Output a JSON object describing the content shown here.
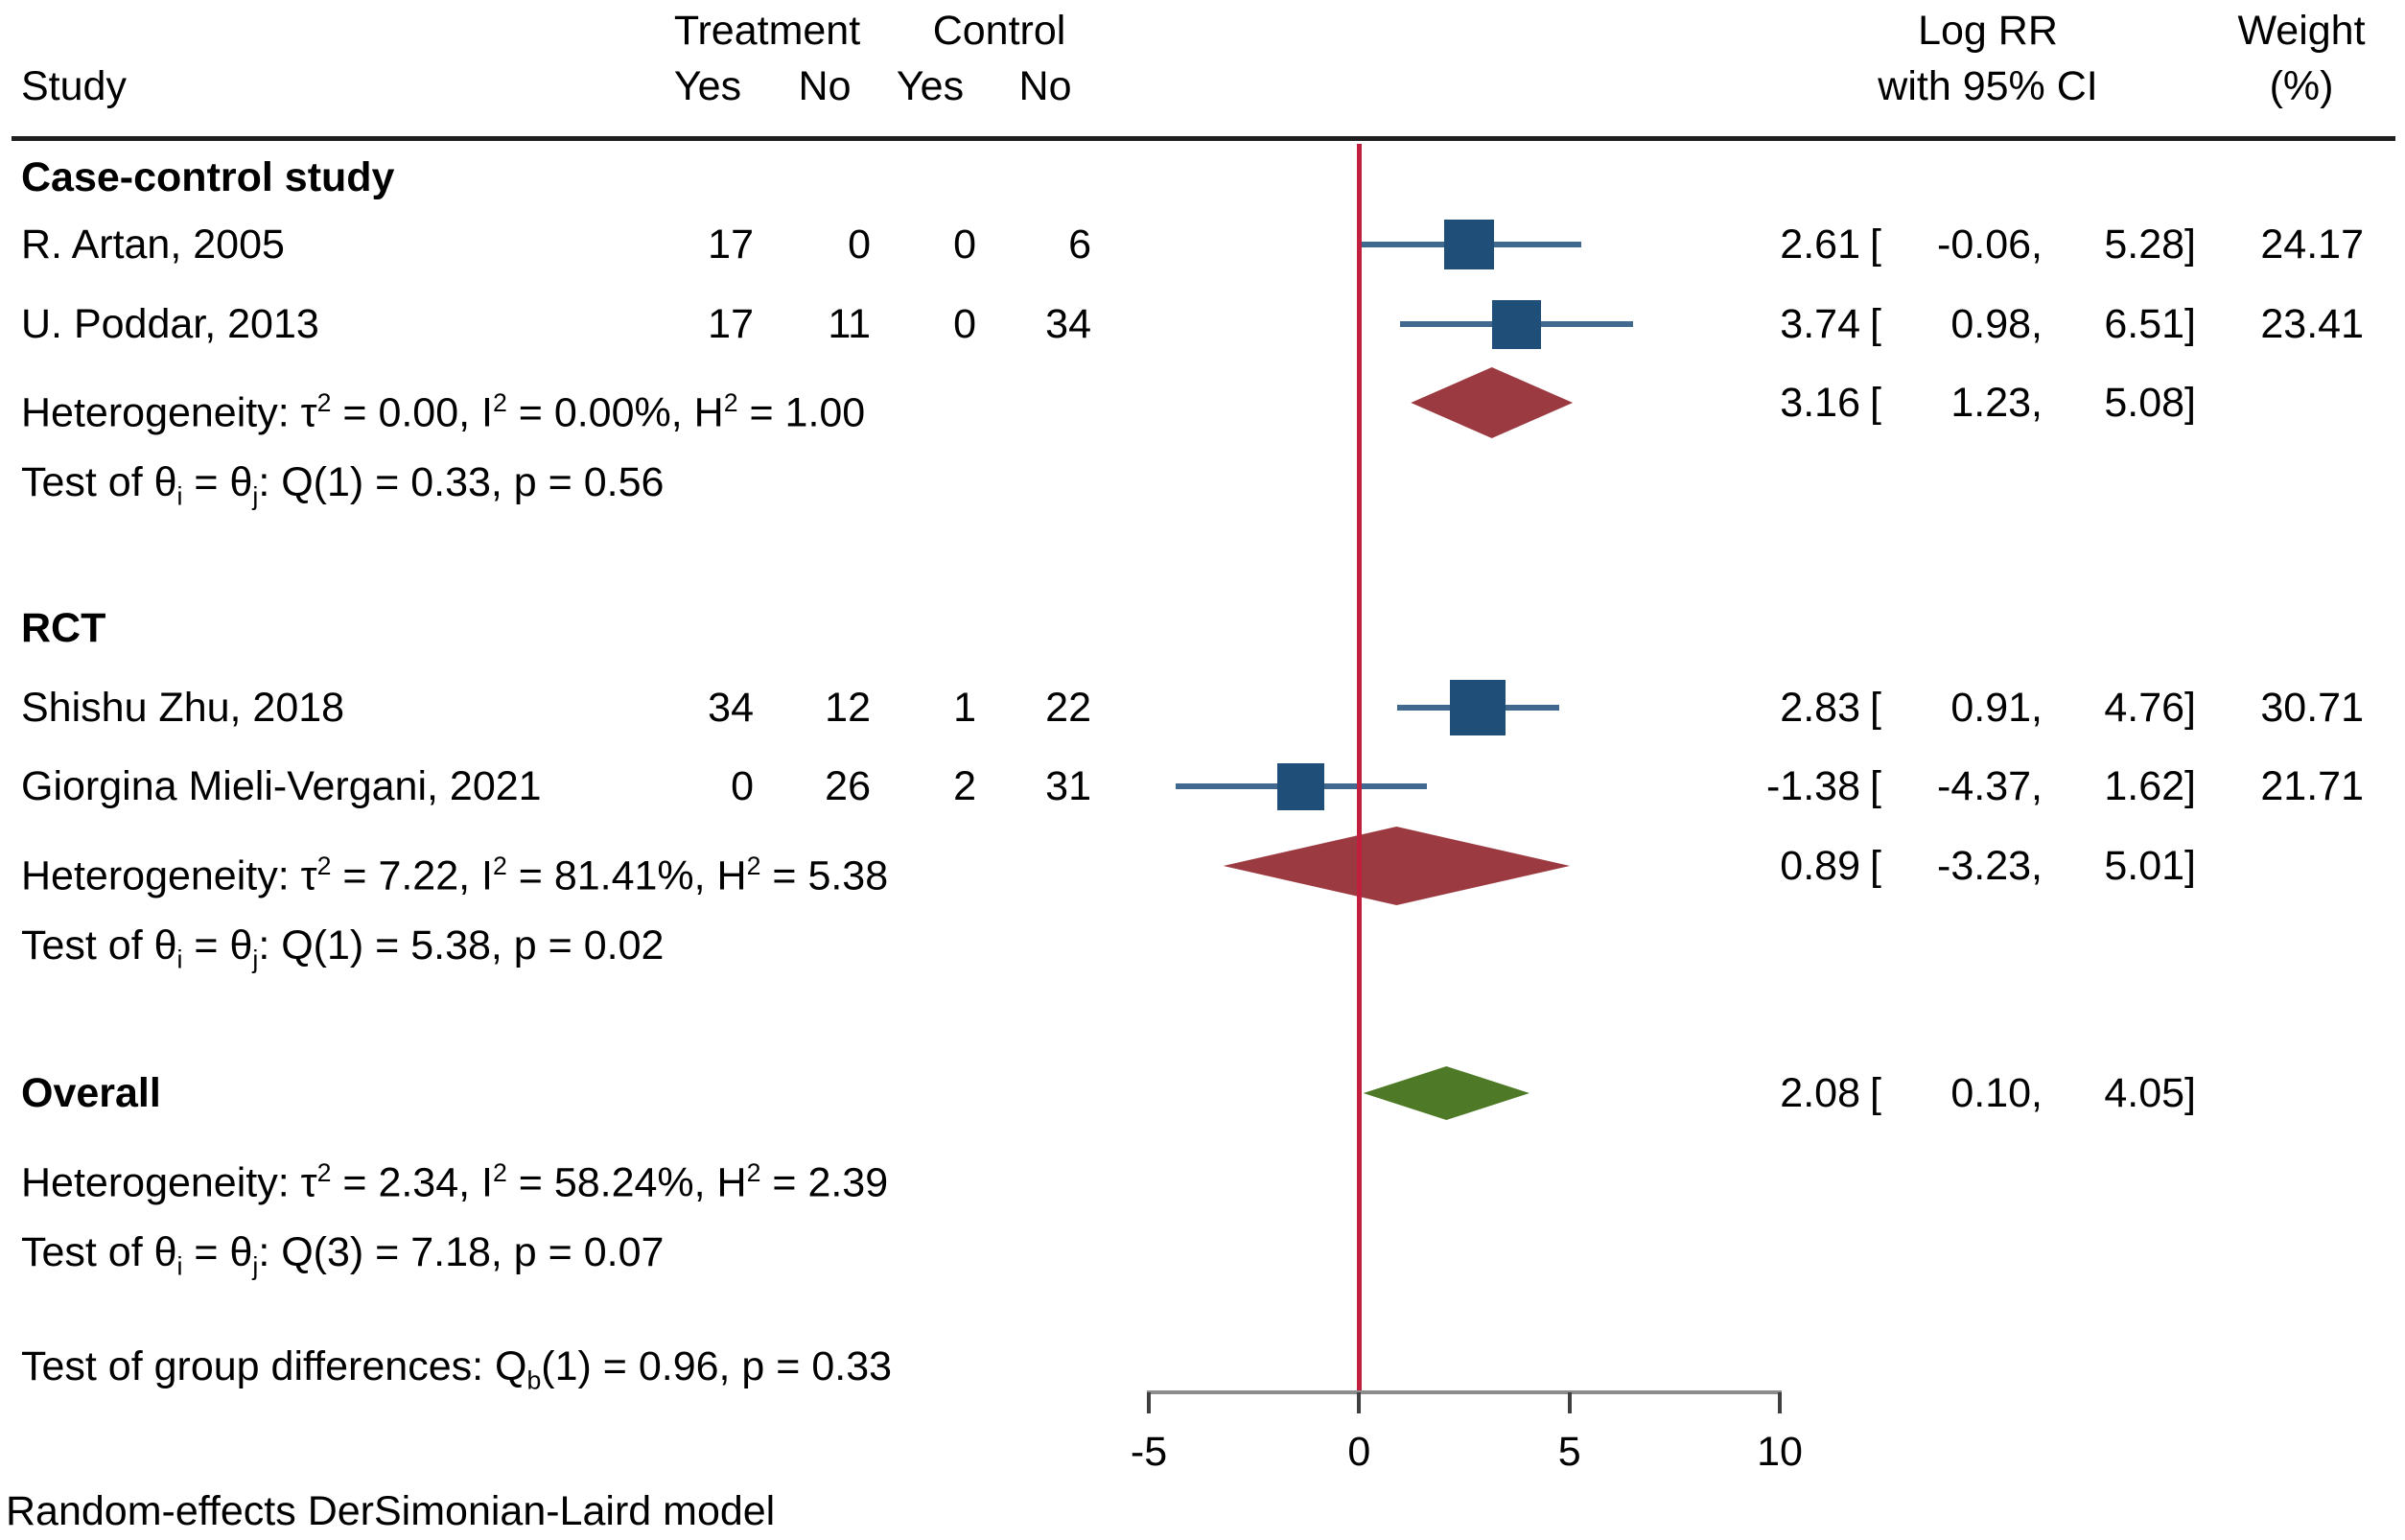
{
  "header": {
    "study": "Study",
    "treatment": "Treatment",
    "control": "Control",
    "treatment_yes": "Yes",
    "treatment_no": "No",
    "control_yes": "Yes",
    "control_no": "No",
    "effect_line1": "Log RR",
    "effect_line2": "with 95% CI",
    "weight_line1": "Weight",
    "weight_line2": "(%)"
  },
  "footer": "Random-effects DerSimonian-Laird model",
  "colors": {
    "square": "#1f4e79",
    "ci_line": "#41688e",
    "group_diamond": "#9c3a41",
    "overall_diamond": "#4e7a28",
    "reference_line": "#c0203e",
    "axis_line": "#8c8c8c",
    "text": "#000000"
  },
  "chart_data": {
    "type": "forest",
    "effect_label": "Log RR",
    "x_axis": {
      "ticks": [
        -5,
        0,
        5,
        10
      ],
      "range": [
        -5,
        10
      ],
      "reference_line": 0
    },
    "effect_format": {
      "open": "[",
      "sep": ",",
      "close": "]"
    },
    "groups": [
      {
        "label": "Case-control study",
        "studies": [
          {
            "name": "R. Artan, 2005",
            "treatment_yes": "17",
            "treatment_no": "0",
            "control_yes": "0",
            "control_no": "6",
            "est": "2.61",
            "lo": "-0.06",
            "hi": "5.28",
            "weight": "24.17"
          },
          {
            "name": "U. Poddar, 2013",
            "treatment_yes": "17",
            "treatment_no": "11",
            "control_yes": "0",
            "control_no": "34",
            "est": "3.74",
            "lo": "0.98",
            "hi": "6.51",
            "weight": "23.41"
          }
        ],
        "summary": {
          "est": "3.16",
          "lo": "1.23",
          "hi": "5.08"
        },
        "heterogeneity": "Heterogeneity: τ^2^ = 0.00, I^2^ = 0.00%, H^2^ = 1.00",
        "test": "Test of θ~i~ = θ~j~: Q(1) = 0.33, p = 0.56"
      },
      {
        "label": "RCT",
        "studies": [
          {
            "name": "Shishu Zhu, 2018",
            "treatment_yes": "34",
            "treatment_no": "12",
            "control_yes": "1",
            "control_no": "22",
            "est": "2.83",
            "lo": "0.91",
            "hi": "4.76",
            "weight": "30.71"
          },
          {
            "name": "Giorgina Mieli-Vergani, 2021",
            "treatment_yes": "0",
            "treatment_no": "26",
            "control_yes": "2",
            "control_no": "31",
            "est": "-1.38",
            "lo": "-4.37",
            "hi": "1.62",
            "weight": "21.71"
          }
        ],
        "summary": {
          "est": "0.89",
          "lo": "-3.23",
          "hi": "5.01"
        },
        "heterogeneity": "Heterogeneity: τ^2^ = 7.22, I^2^ = 81.41%, H^2^ = 5.38",
        "test": "Test of θ~i~ = θ~j~: Q(1) = 5.38, p = 0.02"
      }
    ],
    "overall": {
      "label": "Overall",
      "summary": {
        "est": "2.08",
        "lo": "0.10",
        "hi": "4.05"
      },
      "heterogeneity": "Heterogeneity: τ^2^ = 2.34, I^2^ = 58.24%, H^2^ = 2.39",
      "test": "Test of θ~i~ = θ~j~: Q(3) = 7.18, p = 0.07"
    },
    "group_difference": "Test of group differences: Q~b~(1) = 0.96, p = 0.33"
  }
}
